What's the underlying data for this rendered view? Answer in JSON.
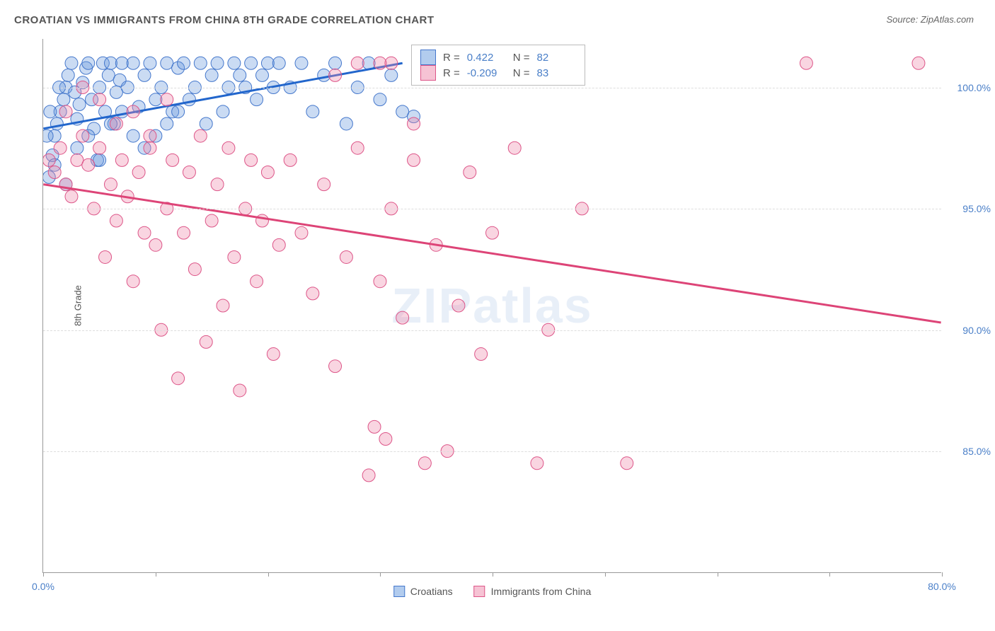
{
  "title": "CROATIAN VS IMMIGRANTS FROM CHINA 8TH GRADE CORRELATION CHART",
  "source": "Source: ZipAtlas.com",
  "ylabel": "8th Grade",
  "watermark": "ZIPatlas",
  "chart": {
    "type": "scatter",
    "xlim": [
      0,
      80
    ],
    "ylim": [
      80,
      102
    ],
    "yticks": [
      85.0,
      90.0,
      95.0,
      100.0
    ],
    "ytick_labels": [
      "85.0%",
      "90.0%",
      "95.0%",
      "100.0%"
    ],
    "xticks": [
      0,
      10,
      20,
      30,
      40,
      50,
      60,
      70,
      80
    ],
    "xtick_labels_shown": {
      "0": "0.0%",
      "80": "80.0%"
    },
    "grid_color": "#dddddd",
    "background": "#ffffff",
    "series": [
      {
        "name": "Croatians",
        "color_fill": "#6699dd",
        "color_stroke": "#4477cc",
        "fill_opacity": 0.35,
        "marker_radius": 9,
        "R": 0.422,
        "N": 82,
        "trend": {
          "x1": 0,
          "y1": 98.3,
          "x2": 32,
          "y2": 101.0,
          "color": "#2266cc",
          "width": 3
        },
        "points": [
          [
            0.5,
            96.3
          ],
          [
            0.8,
            97.2
          ],
          [
            1.0,
            98.0
          ],
          [
            1.2,
            98.5
          ],
          [
            1.5,
            99.0
          ],
          [
            1.8,
            99.5
          ],
          [
            2.0,
            100.0
          ],
          [
            2.2,
            100.5
          ],
          [
            2.5,
            101.0
          ],
          [
            2.8,
            99.8
          ],
          [
            3.0,
            98.7
          ],
          [
            3.2,
            99.3
          ],
          [
            3.5,
            100.2
          ],
          [
            3.8,
            100.8
          ],
          [
            4.0,
            101.0
          ],
          [
            4.3,
            99.5
          ],
          [
            4.5,
            98.3
          ],
          [
            4.8,
            97.0
          ],
          [
            5.0,
            100.0
          ],
          [
            5.3,
            101.0
          ],
          [
            5.5,
            99.0
          ],
          [
            5.8,
            100.5
          ],
          [
            6.0,
            101.0
          ],
          [
            6.3,
            98.5
          ],
          [
            6.5,
            99.8
          ],
          [
            6.8,
            100.3
          ],
          [
            7.0,
            101.0
          ],
          [
            7.5,
            100.0
          ],
          [
            8.0,
            101.0
          ],
          [
            8.5,
            99.2
          ],
          [
            9.0,
            100.5
          ],
          [
            9.5,
            101.0
          ],
          [
            10.0,
            98.0
          ],
          [
            10.5,
            100.0
          ],
          [
            11.0,
            101.0
          ],
          [
            11.5,
            99.0
          ],
          [
            12.0,
            100.8
          ],
          [
            12.5,
            101.0
          ],
          [
            13.0,
            99.5
          ],
          [
            13.5,
            100.0
          ],
          [
            14.0,
            101.0
          ],
          [
            14.5,
            98.5
          ],
          [
            15.0,
            100.5
          ],
          [
            15.5,
            101.0
          ],
          [
            16.0,
            99.0
          ],
          [
            16.5,
            100.0
          ],
          [
            17.0,
            101.0
          ],
          [
            17.5,
            100.5
          ],
          [
            18.0,
            100.0
          ],
          [
            18.5,
            101.0
          ],
          [
            19.0,
            99.5
          ],
          [
            19.5,
            100.5
          ],
          [
            20.0,
            101.0
          ],
          [
            20.5,
            100.0
          ],
          [
            21.0,
            101.0
          ],
          [
            22.0,
            100.0
          ],
          [
            23.0,
            101.0
          ],
          [
            24.0,
            99.0
          ],
          [
            25.0,
            100.5
          ],
          [
            26.0,
            101.0
          ],
          [
            27.0,
            98.5
          ],
          [
            28.0,
            100.0
          ],
          [
            29.0,
            101.0
          ],
          [
            30.0,
            99.5
          ],
          [
            31.0,
            100.5
          ],
          [
            32.0,
            99.0
          ],
          [
            2.0,
            96.0
          ],
          [
            3.0,
            97.5
          ],
          [
            4.0,
            98.0
          ],
          [
            5.0,
            97.0
          ],
          [
            6.0,
            98.5
          ],
          [
            7.0,
            99.0
          ],
          [
            8.0,
            98.0
          ],
          [
            9.0,
            97.5
          ],
          [
            10.0,
            99.5
          ],
          [
            11.0,
            98.5
          ],
          [
            12.0,
            99.0
          ],
          [
            1.0,
            96.8
          ],
          [
            0.3,
            98.0
          ],
          [
            0.6,
            99.0
          ],
          [
            1.4,
            100.0
          ],
          [
            33.0,
            98.8
          ]
        ]
      },
      {
        "name": "Immigrants from China",
        "color_fill": "#ee88aa",
        "color_stroke": "#dd5588",
        "fill_opacity": 0.35,
        "marker_radius": 9,
        "R": -0.209,
        "N": 83,
        "trend": {
          "x1": 0,
          "y1": 96.0,
          "x2": 80,
          "y2": 90.3,
          "color": "#dd4477",
          "width": 3
        },
        "points": [
          [
            0.5,
            97.0
          ],
          [
            1.0,
            96.5
          ],
          [
            1.5,
            97.5
          ],
          [
            2.0,
            96.0
          ],
          [
            2.5,
            95.5
          ],
          [
            3.0,
            97.0
          ],
          [
            3.5,
            98.0
          ],
          [
            4.0,
            96.8
          ],
          [
            4.5,
            95.0
          ],
          [
            5.0,
            97.5
          ],
          [
            5.5,
            93.0
          ],
          [
            6.0,
            96.0
          ],
          [
            6.5,
            94.5
          ],
          [
            7.0,
            97.0
          ],
          [
            7.5,
            95.5
          ],
          [
            8.0,
            92.0
          ],
          [
            8.5,
            96.5
          ],
          [
            9.0,
            94.0
          ],
          [
            9.5,
            97.5
          ],
          [
            10.0,
            93.5
          ],
          [
            10.5,
            90.0
          ],
          [
            11.0,
            95.0
          ],
          [
            11.5,
            97.0
          ],
          [
            12.0,
            88.0
          ],
          [
            12.5,
            94.0
          ],
          [
            13.0,
            96.5
          ],
          [
            13.5,
            92.5
          ],
          [
            14.0,
            98.0
          ],
          [
            14.5,
            89.5
          ],
          [
            15.0,
            94.5
          ],
          [
            15.5,
            96.0
          ],
          [
            16.0,
            91.0
          ],
          [
            16.5,
            97.5
          ],
          [
            17.0,
            93.0
          ],
          [
            17.5,
            87.5
          ],
          [
            18.0,
            95.0
          ],
          [
            18.5,
            97.0
          ],
          [
            19.0,
            92.0
          ],
          [
            19.5,
            94.5
          ],
          [
            20.0,
            96.5
          ],
          [
            20.5,
            89.0
          ],
          [
            21.0,
            93.5
          ],
          [
            22.0,
            97.0
          ],
          [
            23.0,
            94.0
          ],
          [
            24.0,
            91.5
          ],
          [
            25.0,
            96.0
          ],
          [
            26.0,
            88.5
          ],
          [
            27.0,
            93.0
          ],
          [
            28.0,
            97.5
          ],
          [
            29.0,
            84.0
          ],
          [
            29.5,
            86.0
          ],
          [
            30.0,
            92.0
          ],
          [
            30.5,
            85.5
          ],
          [
            31.0,
            95.0
          ],
          [
            32.0,
            90.5
          ],
          [
            33.0,
            97.0
          ],
          [
            34.0,
            84.5
          ],
          [
            35.0,
            93.5
          ],
          [
            36.0,
            85.0
          ],
          [
            37.0,
            91.0
          ],
          [
            38.0,
            96.5
          ],
          [
            39.0,
            89.0
          ],
          [
            40.0,
            94.0
          ],
          [
            42.0,
            97.5
          ],
          [
            45.0,
            90.0
          ],
          [
            48.0,
            95.0
          ],
          [
            44.0,
            84.5
          ],
          [
            35.0,
            101.0
          ],
          [
            33.0,
            98.5
          ],
          [
            31.0,
            101.0
          ],
          [
            52.0,
            84.5
          ],
          [
            68.0,
            101.0
          ],
          [
            78.0,
            101.0
          ],
          [
            2.0,
            99.0
          ],
          [
            3.5,
            100.0
          ],
          [
            5.0,
            99.5
          ],
          [
            6.5,
            98.5
          ],
          [
            8.0,
            99.0
          ],
          [
            9.5,
            98.0
          ],
          [
            11.0,
            99.5
          ],
          [
            30.0,
            101.0
          ],
          [
            28.0,
            101.0
          ],
          [
            26.0,
            100.5
          ]
        ]
      }
    ],
    "legend_box": {
      "background": "#ffffff",
      "border": "#bbbbbb"
    }
  }
}
